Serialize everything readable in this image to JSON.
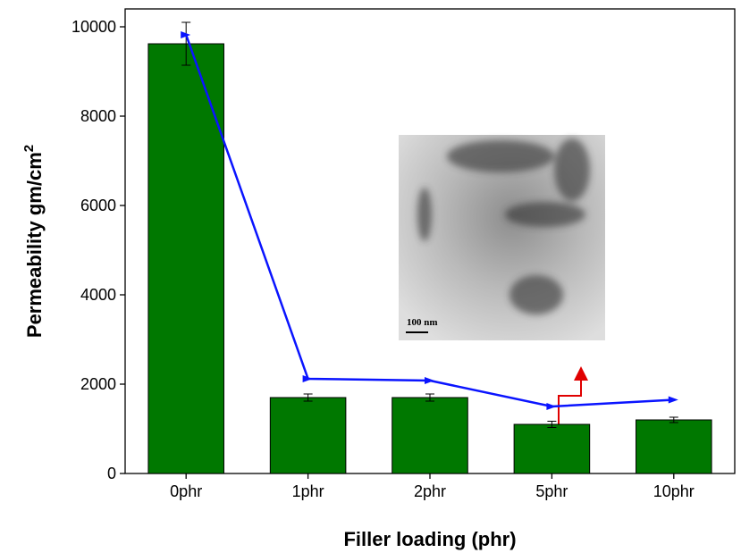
{
  "chart_data": {
    "type": "bar",
    "x_label": "Filler loading (phr)",
    "y_label": "Permeability gm/cm",
    "y_label_superscript": "2",
    "categories": [
      "0phr",
      "1phr",
      "2phr",
      "5phr",
      "10phr"
    ],
    "values": [
      9620,
      1700,
      1700,
      1100,
      1200
    ],
    "errors": [
      480,
      80,
      80,
      70,
      60
    ],
    "color": "#007800",
    "line": {
      "color": "#0a14ff",
      "values": [
        9820,
        2120,
        2080,
        1500,
        1650
      ]
    },
    "inset_label": "100 nm",
    "ylim": [
      0,
      10400
    ],
    "yticks": [
      0,
      2000,
      4000,
      6000,
      8000,
      10000
    ]
  }
}
